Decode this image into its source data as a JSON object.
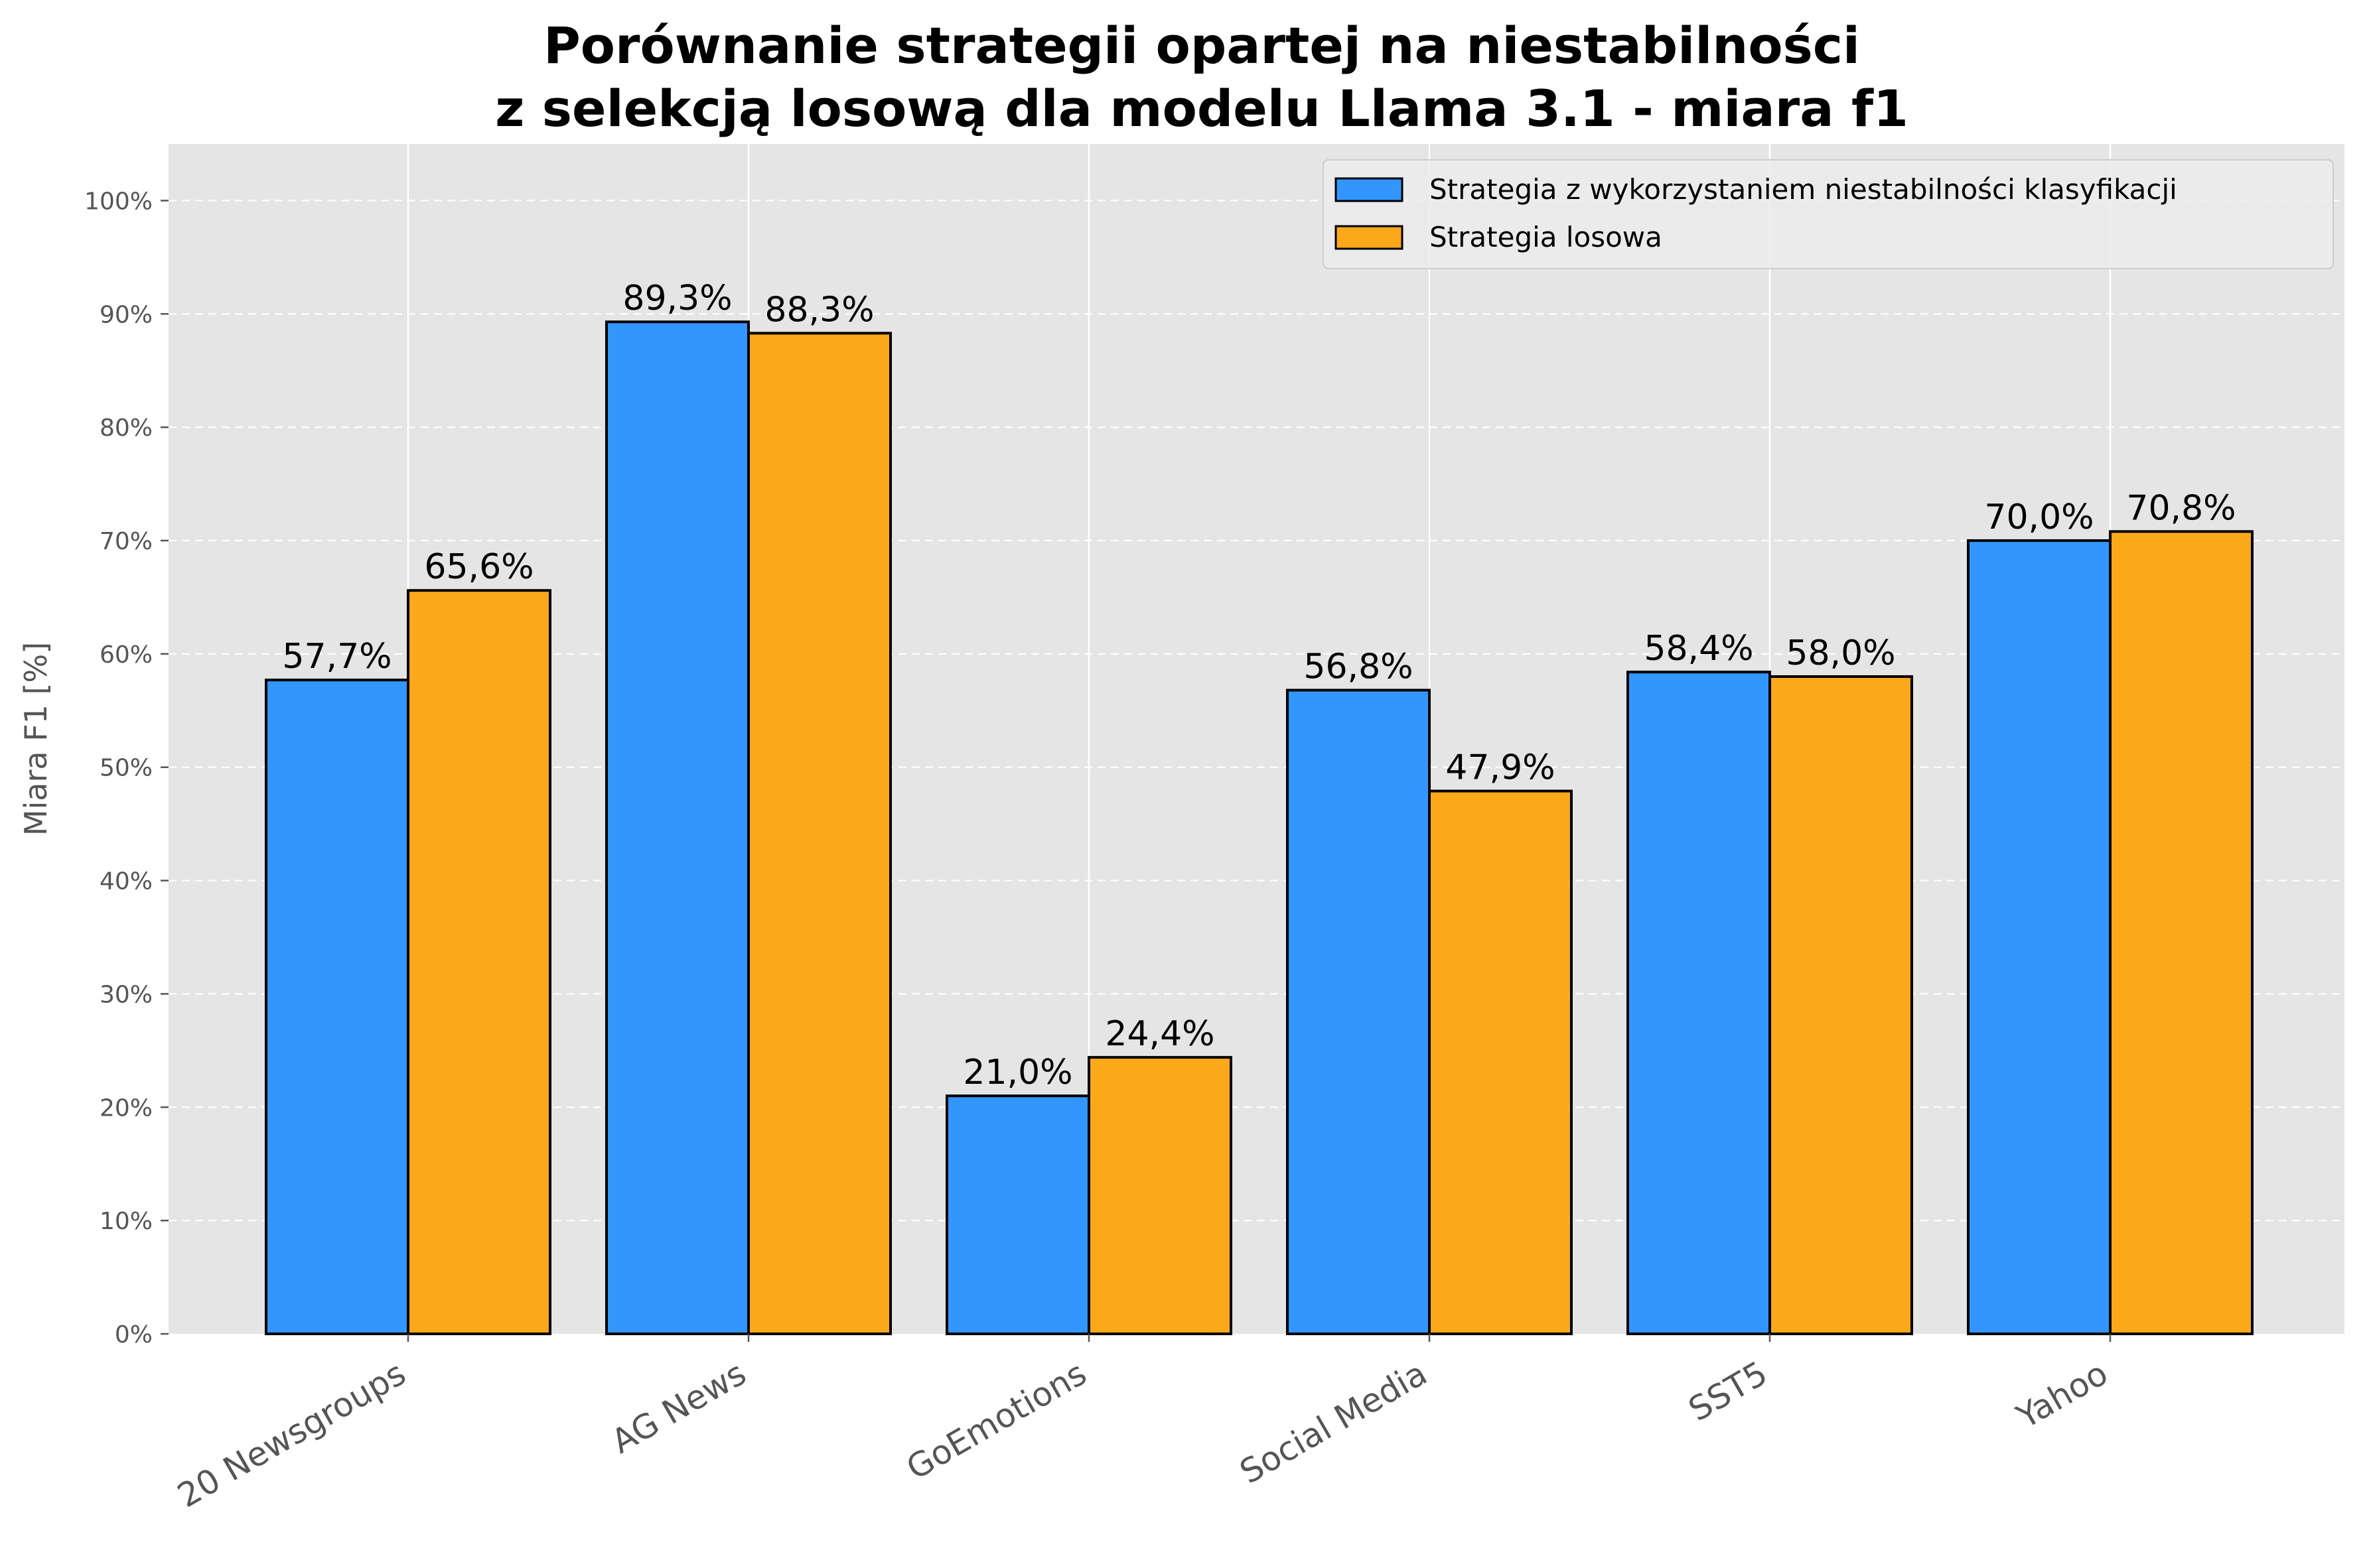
{
  "chart_data": {
    "type": "bar",
    "title_lines": [
      "Porównanie strategii opartej na niestabilności",
      "z selekcją losową dla modelu Llama 3.1 - miara f1"
    ],
    "xlabel": "",
    "ylabel": "Miara F1 [%]",
    "ylim": [
      0,
      105
    ],
    "yticks": [
      0,
      10,
      20,
      30,
      40,
      50,
      60,
      70,
      80,
      90,
      100
    ],
    "ytick_labels": [
      "0%",
      "10%",
      "20%",
      "30%",
      "40%",
      "50%",
      "60%",
      "70%",
      "80%",
      "90%",
      "100%"
    ],
    "grid": true,
    "legend_position": "top-right",
    "categories": [
      "20 Newsgroups",
      "AG News",
      "GoEmotions",
      "Social Media",
      "SST5",
      "Yahoo"
    ],
    "series": [
      {
        "name": "Strategia z wykorzystaniem niestabilności klasyfikacji",
        "color": "#3396ff",
        "values": [
          57.7,
          89.3,
          21.0,
          56.8,
          58.4,
          70.0
        ],
        "labels": [
          "57,7%",
          "89,3%",
          "21,0%",
          "56,8%",
          "58,4%",
          "70,0%"
        ]
      },
      {
        "name": "Strategia losowa",
        "color": "#fba81b",
        "values": [
          65.6,
          88.3,
          24.4,
          47.9,
          58.0,
          70.8
        ],
        "labels": [
          "65,6%",
          "88,3%",
          "24,4%",
          "47,9%",
          "58,0%",
          "70,8%"
        ]
      }
    ],
    "colors": {
      "plot_background": "#e5e5e5",
      "grid": "#ffffff",
      "bar_edge": "#000000"
    }
  }
}
